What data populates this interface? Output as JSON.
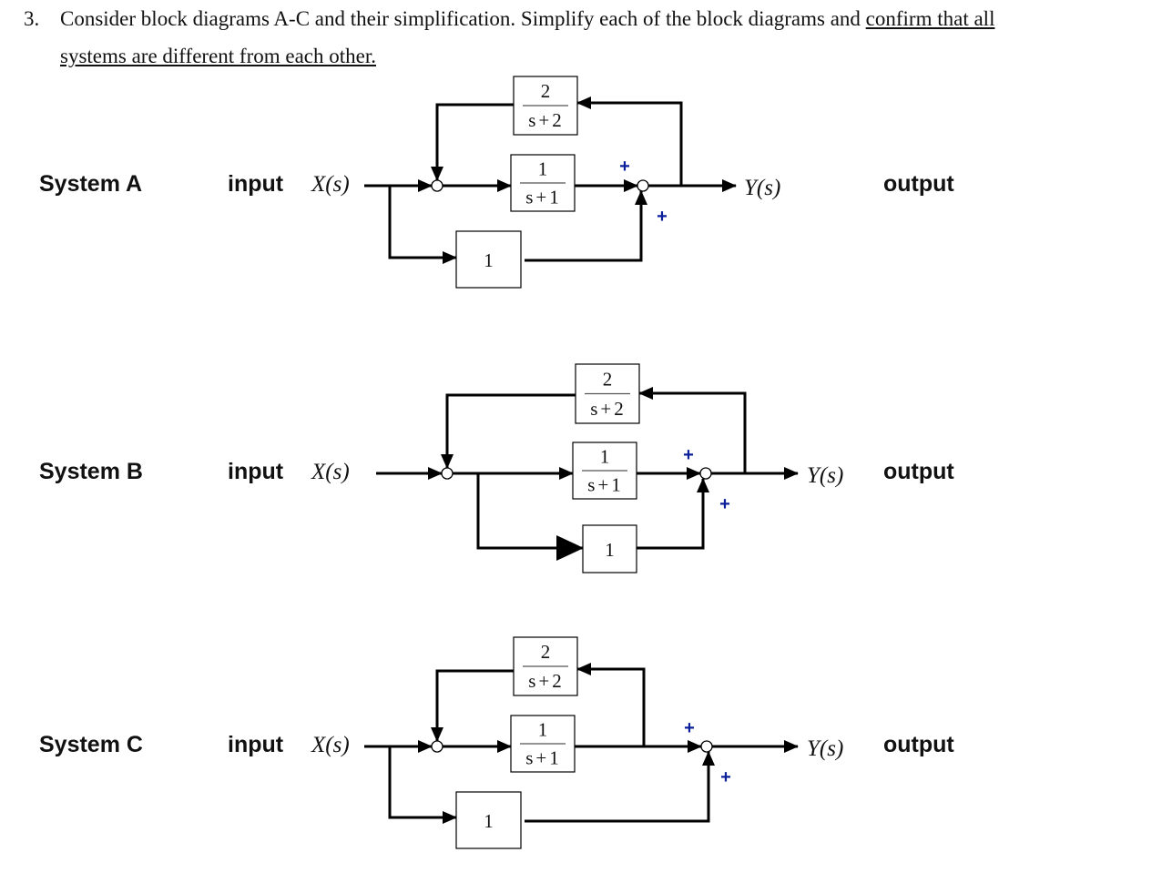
{
  "question": {
    "number": "3.",
    "text_plain": "Consider block diagrams A-C and their simplification. Simplify each of the block diagrams and",
    "text_underlined_1": "confirm that all",
    "text_underlined_2": "systems are different from each other."
  },
  "systems": [
    {
      "name": "System A",
      "input_label": "input",
      "input_signal": "X(s)",
      "output_signal": "Y(s)",
      "output_label": "output",
      "feedback_block": {
        "num": "2",
        "den": "s+2"
      },
      "forward_block": {
        "num": "1",
        "den": "s+1"
      },
      "feedforward_block": "1",
      "signs": [
        "+",
        "+"
      ]
    },
    {
      "name": "System B",
      "input_label": "input",
      "input_signal": "X(s)",
      "output_signal": "Y(s)",
      "output_label": "output",
      "feedback_block": {
        "num": "2",
        "den": "s+2"
      },
      "forward_block": {
        "num": "1",
        "den": "s+1"
      },
      "feedforward_block": "1",
      "signs": [
        "+",
        "+"
      ]
    },
    {
      "name": "System C",
      "input_label": "input",
      "input_signal": "X(s)",
      "output_signal": "Y(s)",
      "output_label": "output",
      "feedback_block": {
        "num": "2",
        "den": "s+2"
      },
      "forward_block": {
        "num": "1",
        "den": "s+1"
      },
      "feedforward_block": "1",
      "signs": [
        "+",
        "+"
      ]
    }
  ],
  "colors": {
    "sign": "#0b1f9a",
    "lines": "#000000"
  }
}
